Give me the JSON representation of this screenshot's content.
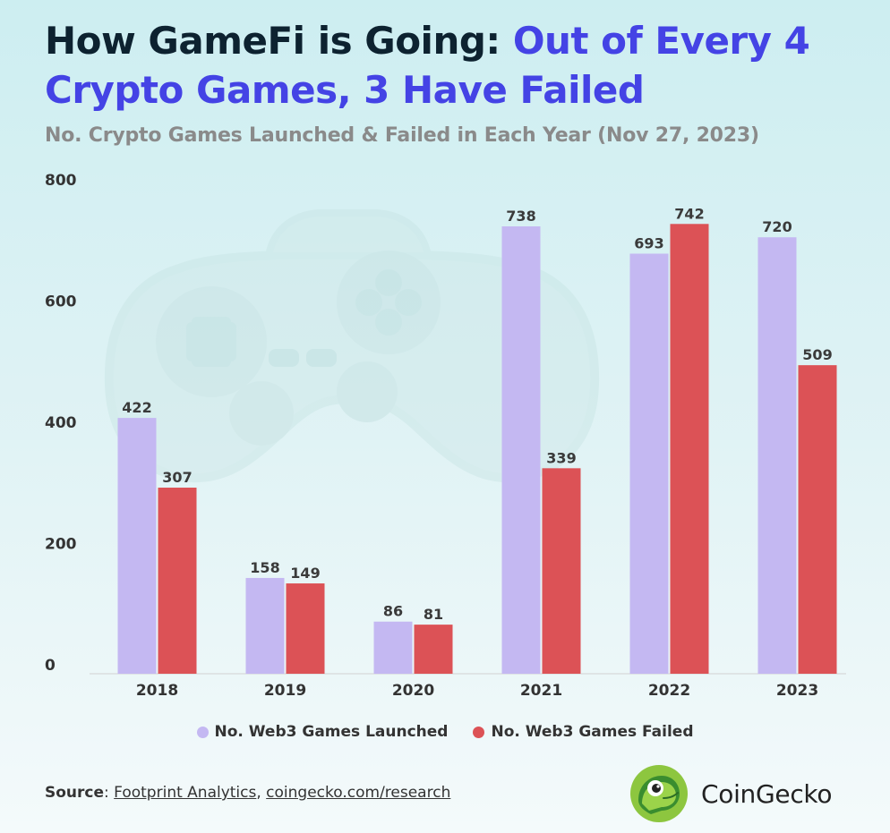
{
  "title": {
    "part1": "How GameFi is Going: ",
    "part2": "Out of Every 4 Crypto Games, 3 Have Failed"
  },
  "subtitle": "No. Crypto Games Launched & Failed in Each Year (Nov 27, 2023)",
  "colors": {
    "launched": "#c4b8f2",
    "failed": "#dc5256",
    "title_accent": "#4443e5"
  },
  "chart_data": {
    "type": "bar",
    "categories": [
      "2018",
      "2019",
      "2020",
      "2021",
      "2022",
      "2023"
    ],
    "series": [
      {
        "name": "No. Web3 Games Launched",
        "values": [
          422,
          158,
          86,
          738,
          693,
          720
        ]
      },
      {
        "name": "No. Web3 Games Failed",
        "values": [
          307,
          149,
          81,
          339,
          742,
          509
        ]
      }
    ],
    "yticks": [
      "0",
      "200",
      "400",
      "600",
      "800"
    ],
    "ylim": [
      0,
      800
    ],
    "grid": false,
    "legend": "bottom-center",
    "background_icon": "game-controller-icon"
  },
  "legend": [
    {
      "label": "No. Web3 Games Launched"
    },
    {
      "label": "No. Web3 Games Failed"
    }
  ],
  "source": {
    "label": "Source",
    "separator": ": ",
    "link1": "Footprint Analytics",
    "comma": ", ",
    "link2": "coingecko.com/research"
  },
  "brand": {
    "name": "CoinGecko",
    "logo_icon": "gecko-logo-icon"
  }
}
